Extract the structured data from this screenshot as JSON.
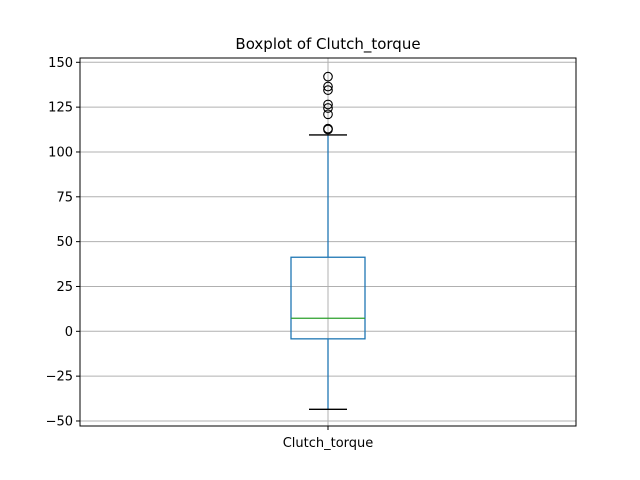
{
  "chart_data": {
    "type": "boxplot",
    "title": "Boxplot of Clutch_torque",
    "xlabel": "",
    "ylabel": "",
    "categories": [
      "Clutch_torque"
    ],
    "boxes": [
      {
        "category": "Clutch_torque",
        "whisker_low": -43.5,
        "q1": -4.2,
        "median": 7.3,
        "q3": 41.3,
        "whisker_high": 109.5,
        "outliers": [
          112.5,
          113.0,
          121.0,
          124.5,
          126.5,
          134.5,
          136.5,
          142.0
        ]
      }
    ],
    "ylim": [
      -52.8,
      152.4
    ],
    "yticks": [
      -50,
      -25,
      0,
      25,
      50,
      75,
      100,
      125,
      150
    ],
    "grid": true,
    "colors": {
      "box": "#1f77b4",
      "median": "#2ca02c",
      "whisker_cap": "#000000",
      "outlier": "#000000",
      "grid": "#b0b0b0"
    }
  }
}
